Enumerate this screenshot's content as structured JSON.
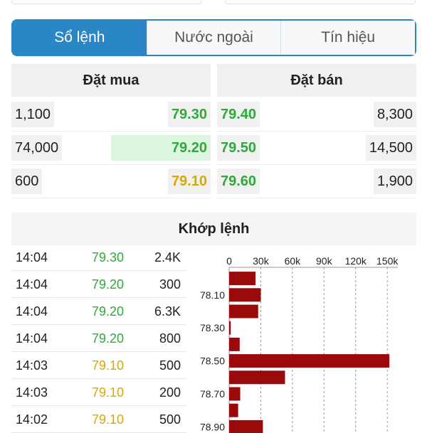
{
  "tabs": [
    {
      "label": "Sổ lệnh",
      "active": true
    },
    {
      "label": "Nước ngoài",
      "active": false
    },
    {
      "label": "Tín hiệu",
      "active": false
    }
  ],
  "order_book": {
    "buy_title": "Đặt mua",
    "sell_title": "Đặt bán",
    "buy": [
      {
        "volume": "1,100",
        "price": "79.30",
        "color": "green"
      },
      {
        "volume": "74,000",
        "price": "79.20",
        "color": "green"
      },
      {
        "volume": "600",
        "price": "79.10",
        "color": "yellow"
      }
    ],
    "sell": [
      {
        "price": "79.40",
        "volume": "8,300",
        "color": "green"
      },
      {
        "price": "79.50",
        "volume": "14,500",
        "color": "green"
      },
      {
        "price": "79.60",
        "volume": "1,900",
        "color": "green"
      }
    ],
    "colors": {
      "green": "#2faa3a",
      "yellow": "#d9a800",
      "accent": "#2b86c5",
      "bar": "#9b0a0a"
    }
  },
  "matched": {
    "title": "Khớp lệnh",
    "rows": [
      {
        "time": "14:04",
        "price": "79.30",
        "volume": "2.4K",
        "color": "green"
      },
      {
        "time": "14:04",
        "price": "79.20",
        "volume": "300",
        "color": "green"
      },
      {
        "time": "14:04",
        "price": "79.20",
        "volume": "6.3K",
        "color": "green"
      },
      {
        "time": "14:04",
        "price": "79.20",
        "volume": "800",
        "color": "green"
      },
      {
        "time": "14:03",
        "price": "79.10",
        "volume": "500",
        "color": "yellow"
      },
      {
        "time": "14:03",
        "price": "79.10",
        "volume": "200",
        "color": "yellow"
      },
      {
        "time": "14:02",
        "price": "79.10",
        "volume": "500",
        "color": "yellow"
      }
    ]
  },
  "chart_data": {
    "type": "bar",
    "orientation": "horizontal",
    "xlim": [
      0,
      160000
    ],
    "x_ticks": [
      "0",
      "30k",
      "60k",
      "90k",
      "120k",
      "150k"
    ],
    "x_tick_values": [
      0,
      30000,
      60000,
      90000,
      120000,
      150000
    ],
    "y_tick_labels": [
      "78.10",
      "78.30",
      "78.50",
      "78.70",
      "78.90"
    ],
    "categories": [
      "78.00",
      "78.10",
      "78.20",
      "78.30",
      "78.40",
      "78.50",
      "78.60",
      "78.70",
      "78.80",
      "78.90"
    ],
    "values": [
      25000,
      30000,
      27500,
      1500,
      10000,
      152000,
      53000,
      10500,
      8500,
      32000
    ],
    "bar_color": "#9b0a0a",
    "grid": "vertical-dashed"
  }
}
